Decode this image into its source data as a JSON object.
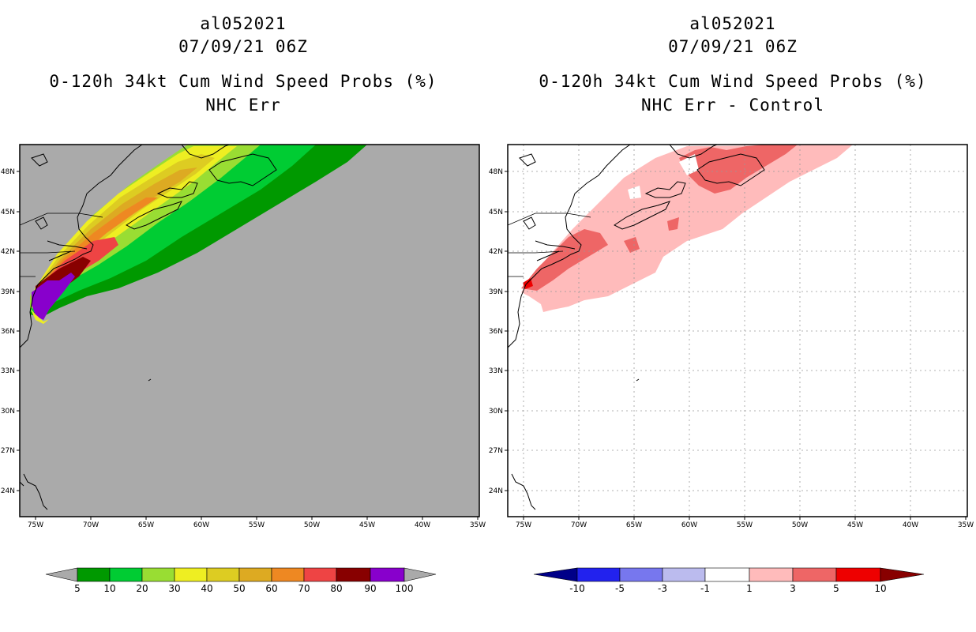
{
  "panels": [
    {
      "id": "left",
      "storm_id": "al052021",
      "datetime": "07/09/21 06Z",
      "title": "0-120h 34kt Cum Wind Speed Probs (%)",
      "subtitle": "NHC Err",
      "background": "#aaaaaa",
      "colorbar": {
        "labels": [
          "5",
          "10",
          "20",
          "30",
          "40",
          "50",
          "60",
          "70",
          "80",
          "90",
          "100"
        ],
        "colors": [
          "#009900",
          "#00cc33",
          "#99dd33",
          "#eeee22",
          "#ddcc22",
          "#ddaa22",
          "#ee8822",
          "#ee4444",
          "#880000",
          "#8800cc"
        ],
        "ends": "#aaaaaa"
      }
    },
    {
      "id": "right",
      "storm_id": "al052021",
      "datetime": "07/09/21 06Z",
      "title": "0-120h 34kt Cum Wind Speed Probs (%)",
      "subtitle": "NHC Err - Control",
      "background": "#ffffff",
      "colorbar": {
        "labels": [
          "-10",
          "-5",
          "-3",
          "-1",
          "1",
          "3",
          "5",
          "10"
        ],
        "colors": [
          "#0000bb",
          "#2222ee",
          "#7777ee",
          "#bbbbee",
          "#ffffff",
          "#ffbbbb",
          "#ee6666",
          "#ee0000"
        ],
        "end_low": "#000088",
        "end_high": "#880000"
      }
    }
  ],
  "axes": {
    "lat_labels": [
      "48N",
      "45N",
      "42N",
      "39N",
      "36N",
      "33N",
      "30N",
      "27N",
      "24N"
    ],
    "lon_labels": [
      "75W",
      "70W",
      "65W",
      "60W",
      "55W",
      "50W",
      "45W",
      "40W",
      "35W"
    ]
  }
}
